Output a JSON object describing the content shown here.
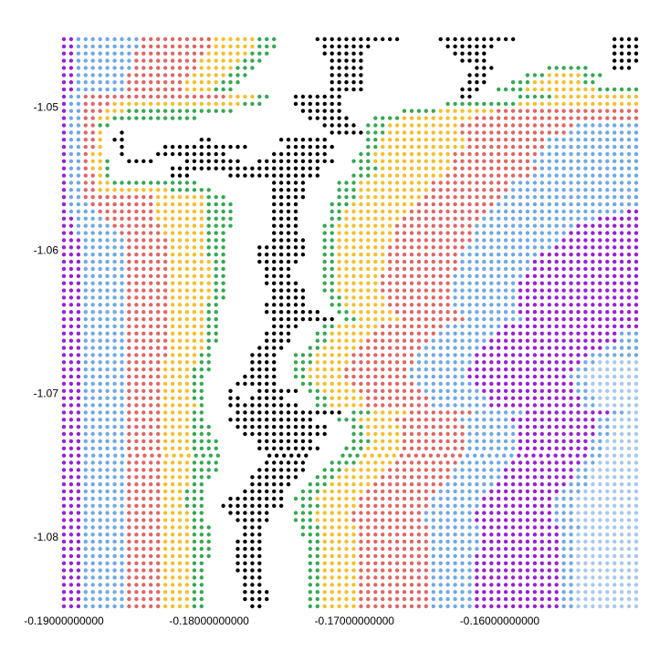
{
  "chart_data": {
    "type": "dot-grid",
    "xlim": [
      -0.19,
      -0.1506
    ],
    "ylim": [
      -1.0848,
      -1.0452
    ],
    "xticks": [
      {
        "value": -0.19,
        "label": "-0.19000000000"
      },
      {
        "value": -0.18,
        "label": "-0.18000000000"
      },
      {
        "value": -0.17,
        "label": "-0.17000000000"
      },
      {
        "value": -0.16,
        "label": "-0.16000000000"
      }
    ],
    "yticks": [
      -1.05,
      -1.06,
      -1.07,
      -1.08
    ],
    "colors": {
      "P": "#9a1fd6",
      "B": "#6fa8e6",
      "R": "#e06666",
      "Y": "#f4bf2a",
      "G": "#34a853",
      "K": "#000000",
      "L": "#a9c8ec"
    },
    "rows": [
      "P2B9R10Y6G3W5K12W5K11W13K4",
      "P2B9R10Y6G3W6K7W10K7W16K4",
      "P2B8R10Y6G3W7K6W12K5W17K4",
      "P2B8R9Y6G3W9K5W13K4W17K4",
      "P2B8R9Y5G3W10K5W15K3W7G6W3K3W1",
      "P2B7R9Y5G3W11K5W14K3W5G3Y5G3W5",
      "P2B7R8Y5G3W12K5W14K3W3G3Y7G2W6",
      "P2B7R8Y4G3W13K5W13K3W2G4Y10G6",
      "P1B2R20Y4G2W3K7W16K2W6G5Y12",
      "P1B2R4Y18G3W4K7W14G10Y17",
      "P1B2R3Y3G15W9K6W8G5Y8R20",
      "P1B2R2Y2G12W15K6W3G4Y10R23",
      "P1B2R2G2W29K5W1G3Y10R16B9",
      "P1B2R2Y1W2K1W28K5G3Y10R15B10",
      "P1B2R2Y1W1K2W10K2W9K7W5G2Y12R11B13",
      "P1B2R2Y1W2K1W5K12W5K7W4G2Y12R11B13",
      "P1B2R1Y2W2K1W4K10W6K8W4G2Y11R12B14",
      "P1B2R1Y2G1W2K4W4K8W2K11W2G3Y11R11B15",
      "P1B2R1Y2G1W8K21W5G3Y10R12B14",
      "P1B2R2Y1G1W8K3W5K13W4G3Y10R12B15",
      "P1B2R2Y2G12W10K5W4G3Y10R11B18",
      "P1B2R2Y10G6W8K5W4G3Y10R11B18",
      "P1B2R10Y7G3W6K5W4G3Y9R11B19",
      "P1B3R9Y7G4W5K4W4G3Y9R11B20",
      "P1B4R8Y7G4W5K4W4G2Y9R11B19P2",
      "P2B4R7Y7G4W5K4W4G2Y8R11B16P6",
      "P2B5R7Y6G4W5K4W3G2Y8R11B14P9",
      "P2B6R6Y6G3W6K4W3G2Y8R11B13P10",
      "P3B6R6Y5G3W6K5W2G2Y8R11B12P11",
      "P3B6R6Y5G3W4K7W2G2Y7R11B12P12",
      "P3B6R6Y5G3W4K7W2G2Y7R10B11P14",
      "P3B6R6Y6G2W4K6W3G2Y7R10B10P15",
      "P3B6R6Y6G2W5K4W4G2Y7R10B10P15",
      "P3B6R6Y6G2W5K4W4G2Y6R10B10P16",
      "P3B6R6Y6G2W5K5W3G2Y6R10B9P17",
      "P3B6R6Y6G2W6K5W2G2Y6R10B9P17",
      "P3B6R6Y6G2W6K5W3G2Y6R9B9P17",
      "P3B6R6Y5G2W6K6W3G2Y6R9B9P17",
      "P3B6R6Y5G2W6K8W2G2Y6R9B8P17",
      "P3B6R6Y5G2W7K9W1G2Y6R9B8P16",
      "P3B6R6Y5G2W7K4W3G2Y6R9B8P19",
      "P3B6R6Y5G2W6K4W3G2Y6R9B8P17B3",
      "P3B6R6Y5G2W6K4W3G2Y5R9B8P18B3",
      "P3B6R6Y5G1W6K4W3G2Y5R9B8P17B5",
      "P3B6R6Y4G2W5K4W2G3Y5R9B8P16B7",
      "P3B6R5Y5G2W5K4W2G3Y5R9B8P15B2L6",
      "P3B6R5Y4G3W5K4W2G2Y5R9B8P15B2L7",
      "P3B6R5Y4G2W5K5W2G2Y5R9B8P14B2L8",
      "P3B6R5Y4G2W4K6W3G2Y5R9B8P14B2L7",
      "P3B6R5Y4G2W3K1W3K6W1G2Y5R9B8P13B2L7",
      "P3B6R5Y4G2W3K2W1K5W4G2Y5R9B8P13B2L6",
      "P3B6R5Y5G1W3K10W2G2Y5R9B8P13B2L6",
      "P3B6R5Y4G2W4K15W1G3Y5R9B7P12B2L2",
      "P3B6R5Y4G2W3K12W3G3Y5R9B7P12B2L4",
      "P3B6R5Y4G3W3K13W3G2Y5R9B7P11B2L4",
      "P3B6R5Y4G3W4K12W3G2Y5R9B7P11B2L4",
      "P3B6R5Y4G4W5K8W5G3Y4R9B7P10B2L5",
      "P3B6R5Y4G4W5K9W3G3Y5R9B7P10B2L5",
      "P3B6R5Y4G4W6K6W4G3Y5R9B7P10B2L5",
      "P3B6R5Y4G4W6K6W3G4Y5R9B7P10B2L6",
      "P3B6R5Y4G4W5K7W2G3Y6R9B7P10B2L7",
      "P3B6R5Y4G3W5K7W2G3Y6R10B7P10B2L7",
      "P3B6R5Y4G2W6K6W2G3Y6R10B7P10B3L7",
      "P3B6R5Y3G3W5K6W2G3Y6R10B7P10B3L8",
      "P3B6R5Y3G3W3K8W1G3Y6R10B7P10B3L9",
      "P3B6R5Y3G3W2K9W2G3Y5R10B7P10B3L9",
      "P3B6R5Y4G2W3K6W3G3Y5R10B7P11B3L9",
      "P3B6R5Y4G2W4K5W3G3Y5R10B7P11B3L9",
      "P3B6R5Y4G3W4K3W5G3Y5R10B7P11B3L8",
      "P3B6R5Y4G3W4K3W5G3Y5R10B7P11B2L9",
      "P3B6R5Y4G3W3K4W6G2Y5R10B7P11B2L9",
      "P3B6R5Y4G3W3K4W6G2Y5R10B7P11B2L9",
      "P3B6R5Y4G3W3K4W6G2Y5R10B6P12B2L9",
      "P3B6R5Y4G2W4K4W6G2Y5R10B6P12B2L9",
      "P3B6R5Y4G2W4K4W6G2Y5R10B6P12B2L9",
      "P3B6R5Y4G2W5K3W6G2Y5R10B6P12B2L9",
      "P3B6R5Y4G2W5K3W6G2Y5R10B6P12B2L9",
      "P3B6R5Y4G2W5K4W5G2Y5R10B6P12B2L9",
      "P3B6R5Y4G2W5K4W5G2Y5R10B6P12B2L9",
      "P3B6R5Y4G2W6K2W6G2Y5R10B6P12B2L9"
    ]
  }
}
